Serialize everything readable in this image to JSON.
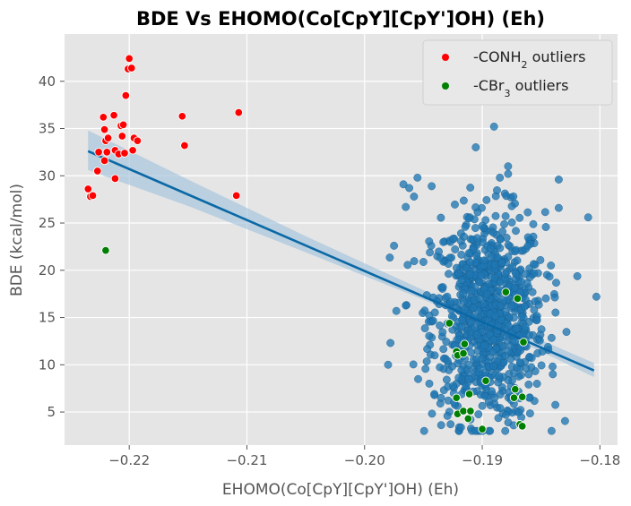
{
  "chart_data": {
    "type": "scatter",
    "title": "BDE Vs EHOMO(Co[CpY][CpY']OH) (Eh)",
    "xlabel": "EHOMO(Co[CpY][CpY']OH) (Eh)",
    "ylabel": "BDE (kcal/mol)",
    "xlim": [
      -0.2255,
      -0.1785
    ],
    "ylim": [
      1.5,
      45.0
    ],
    "xticks": [
      -0.22,
      -0.21,
      -0.2,
      -0.19,
      -0.18
    ],
    "xtick_labels": [
      "−0.22",
      "−0.21",
      "−0.20",
      "−0.19",
      "−0.18"
    ],
    "yticks": [
      5,
      10,
      15,
      20,
      25,
      30,
      35,
      40
    ],
    "ytick_labels": [
      "5",
      "10",
      "15",
      "20",
      "25",
      "30",
      "35",
      "40"
    ],
    "grid": true,
    "legend_position": "top-right",
    "colors": {
      "background": "#e5e5e5",
      "grid": "#ffffff",
      "main": "#1f77b4",
      "regression": "#0a68a6",
      "ci_band": "#a8c6dd",
      "conh2": "#ff0000",
      "cbr3": "#008000"
    },
    "legend": [
      {
        "label_prefix": "-CONH",
        "label_sub": "2",
        "label_suffix": " outliers",
        "color": "#ff0000"
      },
      {
        "label_prefix": "-CBr",
        "label_sub": "3",
        "label_suffix": " outliers",
        "color": "#008000"
      }
    ],
    "regression": {
      "x": [
        -0.2235,
        -0.1805
      ],
      "y": [
        32.6,
        9.4
      ],
      "ci": [
        {
          "x": -0.2235,
          "lo": 30.6,
          "hi": 34.8
        },
        {
          "x": -0.215,
          "lo": 26.8,
          "hi": 29.6
        },
        {
          "x": -0.205,
          "lo": 21.9,
          "hi": 23.6
        },
        {
          "x": -0.195,
          "lo": 16.9,
          "hi": 17.9
        },
        {
          "x": -0.19,
          "lo": 14.2,
          "hi": 15.0
        },
        {
          "x": -0.185,
          "lo": 11.4,
          "hi": 12.6
        },
        {
          "x": -0.1805,
          "lo": 8.7,
          "hi": 10.2
        }
      ]
    },
    "series": [
      {
        "name": "main",
        "cluster": {
          "x_mean": -0.1895,
          "x_std": 0.0024,
          "y_mean": 15.0,
          "y_std": 5.5,
          "count": 900,
          "x_range": [
            -0.1985,
            -0.18
          ],
          "y_range": [
            3.0,
            35.5
          ]
        },
        "points": [
          {
            "x": -0.189,
            "y": 35.2
          },
          {
            "x": -0.1803,
            "y": 17.2
          },
          {
            "x": -0.181,
            "y": 25.6
          },
          {
            "x": -0.1835,
            "y": 29.6
          },
          {
            "x": -0.1835,
            "y": 26.6
          },
          {
            "x": -0.198,
            "y": 10.0
          },
          {
            "x": -0.1967,
            "y": 29.1
          },
          {
            "x": -0.1955,
            "y": 29.8
          },
          {
            "x": -0.1962,
            "y": 28.7
          },
          {
            "x": -0.1958,
            "y": 27.8
          },
          {
            "x": -0.1965,
            "y": 26.7
          },
          {
            "x": -0.1943,
            "y": 28.9
          },
          {
            "x": -0.1878,
            "y": 31.0
          },
          {
            "x": -0.1878,
            "y": 30.2
          },
          {
            "x": -0.1885,
            "y": 29.8
          },
          {
            "x": -0.184,
            "y": 9.0
          },
          {
            "x": -0.1975,
            "y": 22.6
          },
          {
            "x": -0.1978,
            "y": 12.3
          },
          {
            "x": -0.1973,
            "y": 15.7
          },
          {
            "x": -0.1935,
            "y": 6.5
          },
          {
            "x": -0.1945,
            "y": 8.0
          },
          {
            "x": -0.191,
            "y": 4.2
          },
          {
            "x": -0.188,
            "y": 4.7
          },
          {
            "x": -0.186,
            "y": 6.5
          }
        ]
      },
      {
        "name": "-CONH2 outliers",
        "points": [
          {
            "x": -0.2235,
            "y": 28.6
          },
          {
            "x": -0.2233,
            "y": 27.8
          },
          {
            "x": -0.2231,
            "y": 27.9
          },
          {
            "x": -0.2227,
            "y": 30.5
          },
          {
            "x": -0.2226,
            "y": 32.5
          },
          {
            "x": -0.2222,
            "y": 36.2
          },
          {
            "x": -0.2221,
            "y": 34.9
          },
          {
            "x": -0.222,
            "y": 33.7
          },
          {
            "x": -0.2219,
            "y": 32.5
          },
          {
            "x": -0.2221,
            "y": 31.6
          },
          {
            "x": -0.2218,
            "y": 34.0
          },
          {
            "x": -0.2213,
            "y": 36.4
          },
          {
            "x": -0.2212,
            "y": 32.7
          },
          {
            "x": -0.2212,
            "y": 29.7
          },
          {
            "x": -0.2209,
            "y": 32.3
          },
          {
            "x": -0.2207,
            "y": 35.3
          },
          {
            "x": -0.2206,
            "y": 34.2
          },
          {
            "x": -0.2205,
            "y": 35.4
          },
          {
            "x": -0.2204,
            "y": 32.4
          },
          {
            "x": -0.2203,
            "y": 38.5
          },
          {
            "x": -0.2201,
            "y": 41.3
          },
          {
            "x": -0.22,
            "y": 42.4
          },
          {
            "x": -0.2198,
            "y": 41.4
          },
          {
            "x": -0.2197,
            "y": 32.7
          },
          {
            "x": -0.2196,
            "y": 34.0
          },
          {
            "x": -0.2193,
            "y": 33.7
          },
          {
            "x": -0.2155,
            "y": 36.3
          },
          {
            "x": -0.2153,
            "y": 33.2
          },
          {
            "x": -0.2107,
            "y": 36.7
          },
          {
            "x": -0.2109,
            "y": 27.9
          }
        ]
      },
      {
        "name": "-CBr3 outliers",
        "points": [
          {
            "x": -0.222,
            "y": 22.1
          },
          {
            "x": -0.1928,
            "y": 14.4
          },
          {
            "x": -0.1922,
            "y": 11.4
          },
          {
            "x": -0.1921,
            "y": 11.0
          },
          {
            "x": -0.1915,
            "y": 12.2
          },
          {
            "x": -0.1916,
            "y": 11.2
          },
          {
            "x": -0.1922,
            "y": 6.5
          },
          {
            "x": -0.1921,
            "y": 4.8
          },
          {
            "x": -0.1916,
            "y": 5.1
          },
          {
            "x": -0.1912,
            "y": 4.3
          },
          {
            "x": -0.191,
            "y": 5.1
          },
          {
            "x": -0.1911,
            "y": 6.9
          },
          {
            "x": -0.19,
            "y": 3.2
          },
          {
            "x": -0.1897,
            "y": 8.3
          },
          {
            "x": -0.188,
            "y": 17.7
          },
          {
            "x": -0.1873,
            "y": 6.5
          },
          {
            "x": -0.1872,
            "y": 7.4
          },
          {
            "x": -0.187,
            "y": 17.0
          },
          {
            "x": -0.1868,
            "y": 3.7
          },
          {
            "x": -0.1866,
            "y": 3.5
          },
          {
            "x": -0.1865,
            "y": 12.4
          },
          {
            "x": -0.1866,
            "y": 6.6
          }
        ]
      }
    ]
  }
}
